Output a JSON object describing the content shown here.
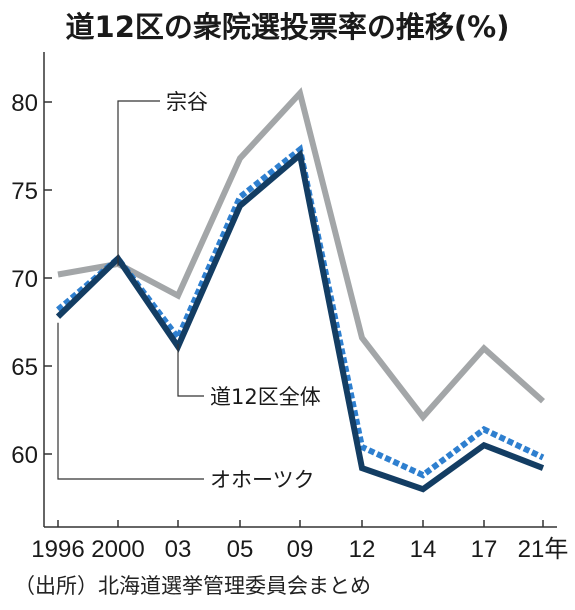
{
  "title": "道12区の衆院選投票率の推移(%)",
  "source": "（出所）北海道選挙管理委員会まとめ",
  "chart_data": {
    "type": "line",
    "title": "道12区の衆院選投票率の推移(%)",
    "xlabel": "",
    "ylabel": "",
    "categories": [
      "1996",
      "2000",
      "03",
      "05",
      "09",
      "12",
      "14",
      "17",
      "21年"
    ],
    "ylim": [
      55,
      83
    ],
    "yticks": [
      60,
      65,
      70,
      75,
      80
    ],
    "grid": false,
    "series": [
      {
        "name": "宗谷",
        "color": "#a3a6a8",
        "dashed": false,
        "values": [
          70.2,
          70.8,
          69.0,
          76.8,
          80.5,
          66.6,
          62.1,
          66.0,
          63.0
        ]
      },
      {
        "name": "道12区全体",
        "color": "#2e7fcf",
        "dashed": true,
        "values": [
          68.2,
          71.1,
          66.6,
          74.6,
          77.3,
          60.4,
          58.8,
          61.4,
          59.8
        ]
      },
      {
        "name": "オホーツク",
        "color": "#133d63",
        "dashed": false,
        "values": [
          67.8,
          71.1,
          66.1,
          74.1,
          77.0,
          59.2,
          58.0,
          60.5,
          59.2
        ]
      }
    ],
    "annotations": [
      "宗谷",
      "道12区全体",
      "オホーツク"
    ]
  }
}
